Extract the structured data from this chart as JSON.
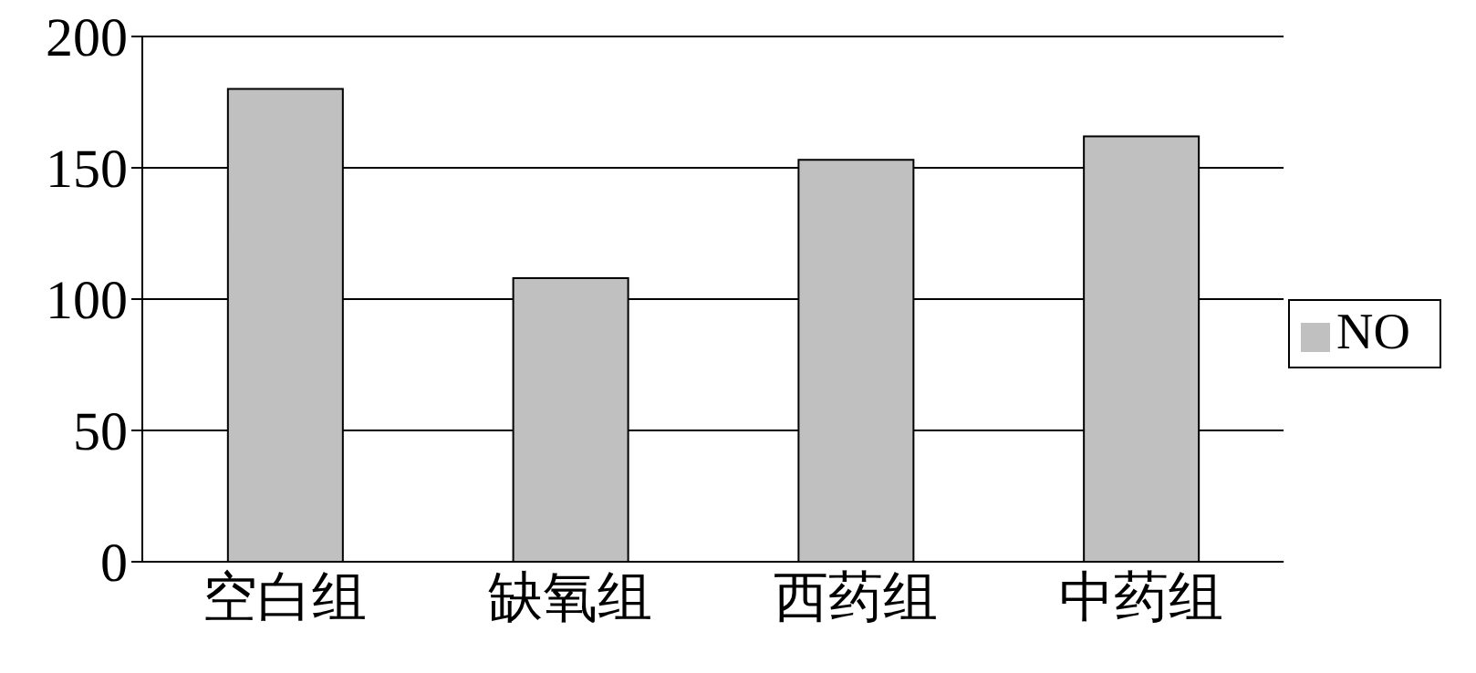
{
  "chart_data": {
    "type": "bar",
    "categories": [
      "空白组",
      "缺氧组",
      "西药组",
      "中药组"
    ],
    "series": [
      {
        "name": "NO",
        "color": "#c0c0c0",
        "values": [
          180,
          108,
          153,
          162
        ]
      }
    ],
    "ylim": [
      0,
      200
    ],
    "yticks": [
      0,
      50,
      100,
      150,
      200
    ],
    "grid": "y",
    "legend": "right"
  }
}
